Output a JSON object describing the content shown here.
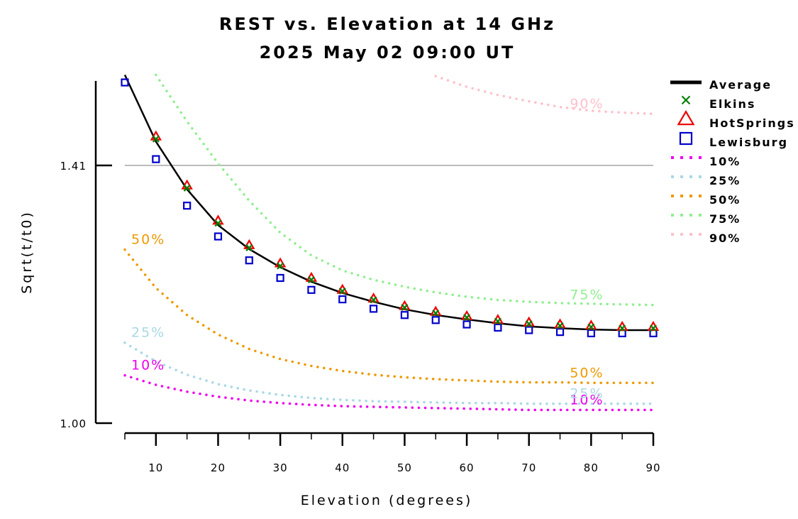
{
  "chart_data": {
    "type": "line",
    "title": "REST vs. Elevation at 14 GHz",
    "subtitle": "2025 May 02 09:00 UT",
    "xlabel": "Elevation (degrees)",
    "ylabel": "Sqrt(t/t0)",
    "xlim": [
      5,
      90
    ],
    "ylim": [
      1.0,
      1.54
    ],
    "xticks": [
      10,
      20,
      30,
      40,
      50,
      60,
      70,
      80,
      90
    ],
    "xtick_labels": [
      "10",
      "20",
      "30",
      "40",
      "50",
      "60",
      "70",
      "80",
      "90"
    ],
    "yticks": [
      1.0,
      1.41
    ],
    "ytick_labels": [
      "1.00",
      "1.41"
    ],
    "reference_line": {
      "y": 1.41,
      "color": "#bbbbbb"
    },
    "legend_position": "top-right",
    "x": [
      5,
      10,
      15,
      20,
      25,
      30,
      35,
      40,
      45,
      50,
      55,
      60,
      65,
      70,
      75,
      80,
      85,
      90
    ],
    "series": [
      {
        "name": "Average",
        "style": "line",
        "color": "#000000",
        "values": [
          1.554,
          1.448,
          1.372,
          1.315,
          1.277,
          1.248,
          1.225,
          1.207,
          1.193,
          1.181,
          1.172,
          1.165,
          1.159,
          1.154,
          1.151,
          1.149,
          1.148,
          1.148
        ]
      },
      {
        "name": "Elkins",
        "style": "marker",
        "marker": "x",
        "color": "#008000",
        "values": [
          null,
          1.452,
          1.374,
          1.318,
          1.279,
          1.25,
          1.228,
          1.21,
          1.196,
          1.184,
          1.175,
          1.168,
          1.162,
          1.158,
          1.155,
          1.153,
          1.151,
          1.151
        ]
      },
      {
        "name": "HotSprings",
        "style": "marker",
        "marker": "triangle",
        "color": "#ee0000",
        "values": [
          null,
          1.456,
          1.378,
          1.322,
          1.283,
          1.254,
          1.231,
          1.212,
          1.198,
          1.186,
          1.177,
          1.17,
          1.164,
          1.16,
          1.157,
          1.155,
          1.153,
          1.153
        ]
      },
      {
        "name": "Lewisburg",
        "style": "marker",
        "marker": "square",
        "color": "#0000cc",
        "values": [
          1.542,
          1.42,
          1.346,
          1.297,
          1.259,
          1.231,
          1.212,
          1.197,
          1.182,
          1.172,
          1.164,
          1.157,
          1.152,
          1.148,
          1.145,
          1.143,
          1.143,
          1.143
        ]
      },
      {
        "name": "10%",
        "style": "dotted",
        "color": "#ee00ee",
        "label": "10%",
        "values": [
          1.076,
          1.061,
          1.05,
          1.042,
          1.036,
          1.032,
          1.029,
          1.027,
          1.026,
          1.025,
          1.024,
          1.023,
          1.022,
          1.021,
          1.021,
          1.021,
          1.021,
          1.021
        ]
      },
      {
        "name": "25%",
        "style": "dotted",
        "color": "#a8d8e6",
        "label": "25%",
        "values": [
          1.128,
          1.098,
          1.077,
          1.062,
          1.052,
          1.045,
          1.04,
          1.037,
          1.035,
          1.034,
          1.033,
          1.032,
          1.032,
          1.031,
          1.031,
          1.031,
          1.031,
          1.031
        ]
      },
      {
        "name": "50%",
        "style": "dotted",
        "color": "#ee9900",
        "label": "50%",
        "values": [
          1.276,
          1.215,
          1.172,
          1.141,
          1.118,
          1.102,
          1.091,
          1.083,
          1.077,
          1.073,
          1.07,
          1.068,
          1.066,
          1.065,
          1.065,
          1.064,
          1.064,
          1.064
        ]
      },
      {
        "name": "75%",
        "style": "dotted",
        "color": "#90ee90",
        "label": "75%",
        "values": [
          null,
          1.554,
          1.48,
          1.413,
          1.354,
          1.303,
          1.267,
          1.243,
          1.228,
          1.217,
          1.208,
          1.201,
          1.196,
          1.193,
          1.191,
          1.19,
          1.189,
          1.188
        ]
      },
      {
        "name": "90%",
        "style": "dotted",
        "color": "#ffc0cb",
        "label": "90%",
        "values": [
          null,
          null,
          null,
          null,
          null,
          null,
          null,
          null,
          null,
          null,
          1.552,
          1.535,
          1.522,
          1.512,
          1.503,
          1.497,
          1.494,
          1.492
        ]
      }
    ]
  }
}
